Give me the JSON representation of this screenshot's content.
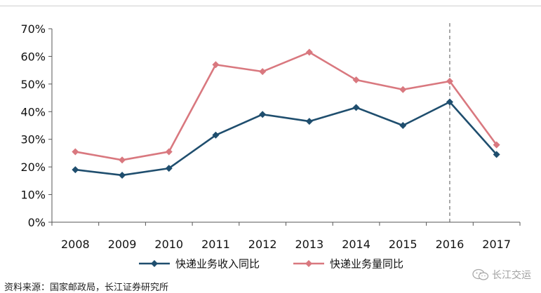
{
  "source_note": "资料来源：国家邮政局，长江证券研究所",
  "watermark": {
    "text": "长江交运",
    "icon": "wechat-icon"
  },
  "chart_data": {
    "type": "line",
    "title": "",
    "xlabel": "",
    "ylabel": "",
    "categories": [
      "2008",
      "2009",
      "2010",
      "2011",
      "2012",
      "2013",
      "2014",
      "2015",
      "2016",
      "2017"
    ],
    "ylim": [
      0,
      70
    ],
    "yticks": [
      0,
      10,
      20,
      30,
      40,
      50,
      60,
      70
    ],
    "ytick_labels": [
      "0%",
      "10%",
      "20%",
      "30%",
      "40%",
      "50%",
      "60%",
      "70%"
    ],
    "grid": false,
    "legend_position": "bottom",
    "reference_line": {
      "x": "2016",
      "style": "dashed"
    },
    "series": [
      {
        "name": "快递业务收入同比",
        "color": "#1f4e6e",
        "marker": "diamond",
        "values": [
          19,
          17,
          19.5,
          31.5,
          39,
          36.5,
          41.5,
          35,
          43.5,
          24.5
        ]
      },
      {
        "name": "快递业务量同比",
        "color": "#d9787f",
        "marker": "diamond",
        "values": [
          25.5,
          22.5,
          25.5,
          57,
          54.5,
          61.5,
          51.5,
          48,
          51,
          28
        ]
      }
    ]
  }
}
